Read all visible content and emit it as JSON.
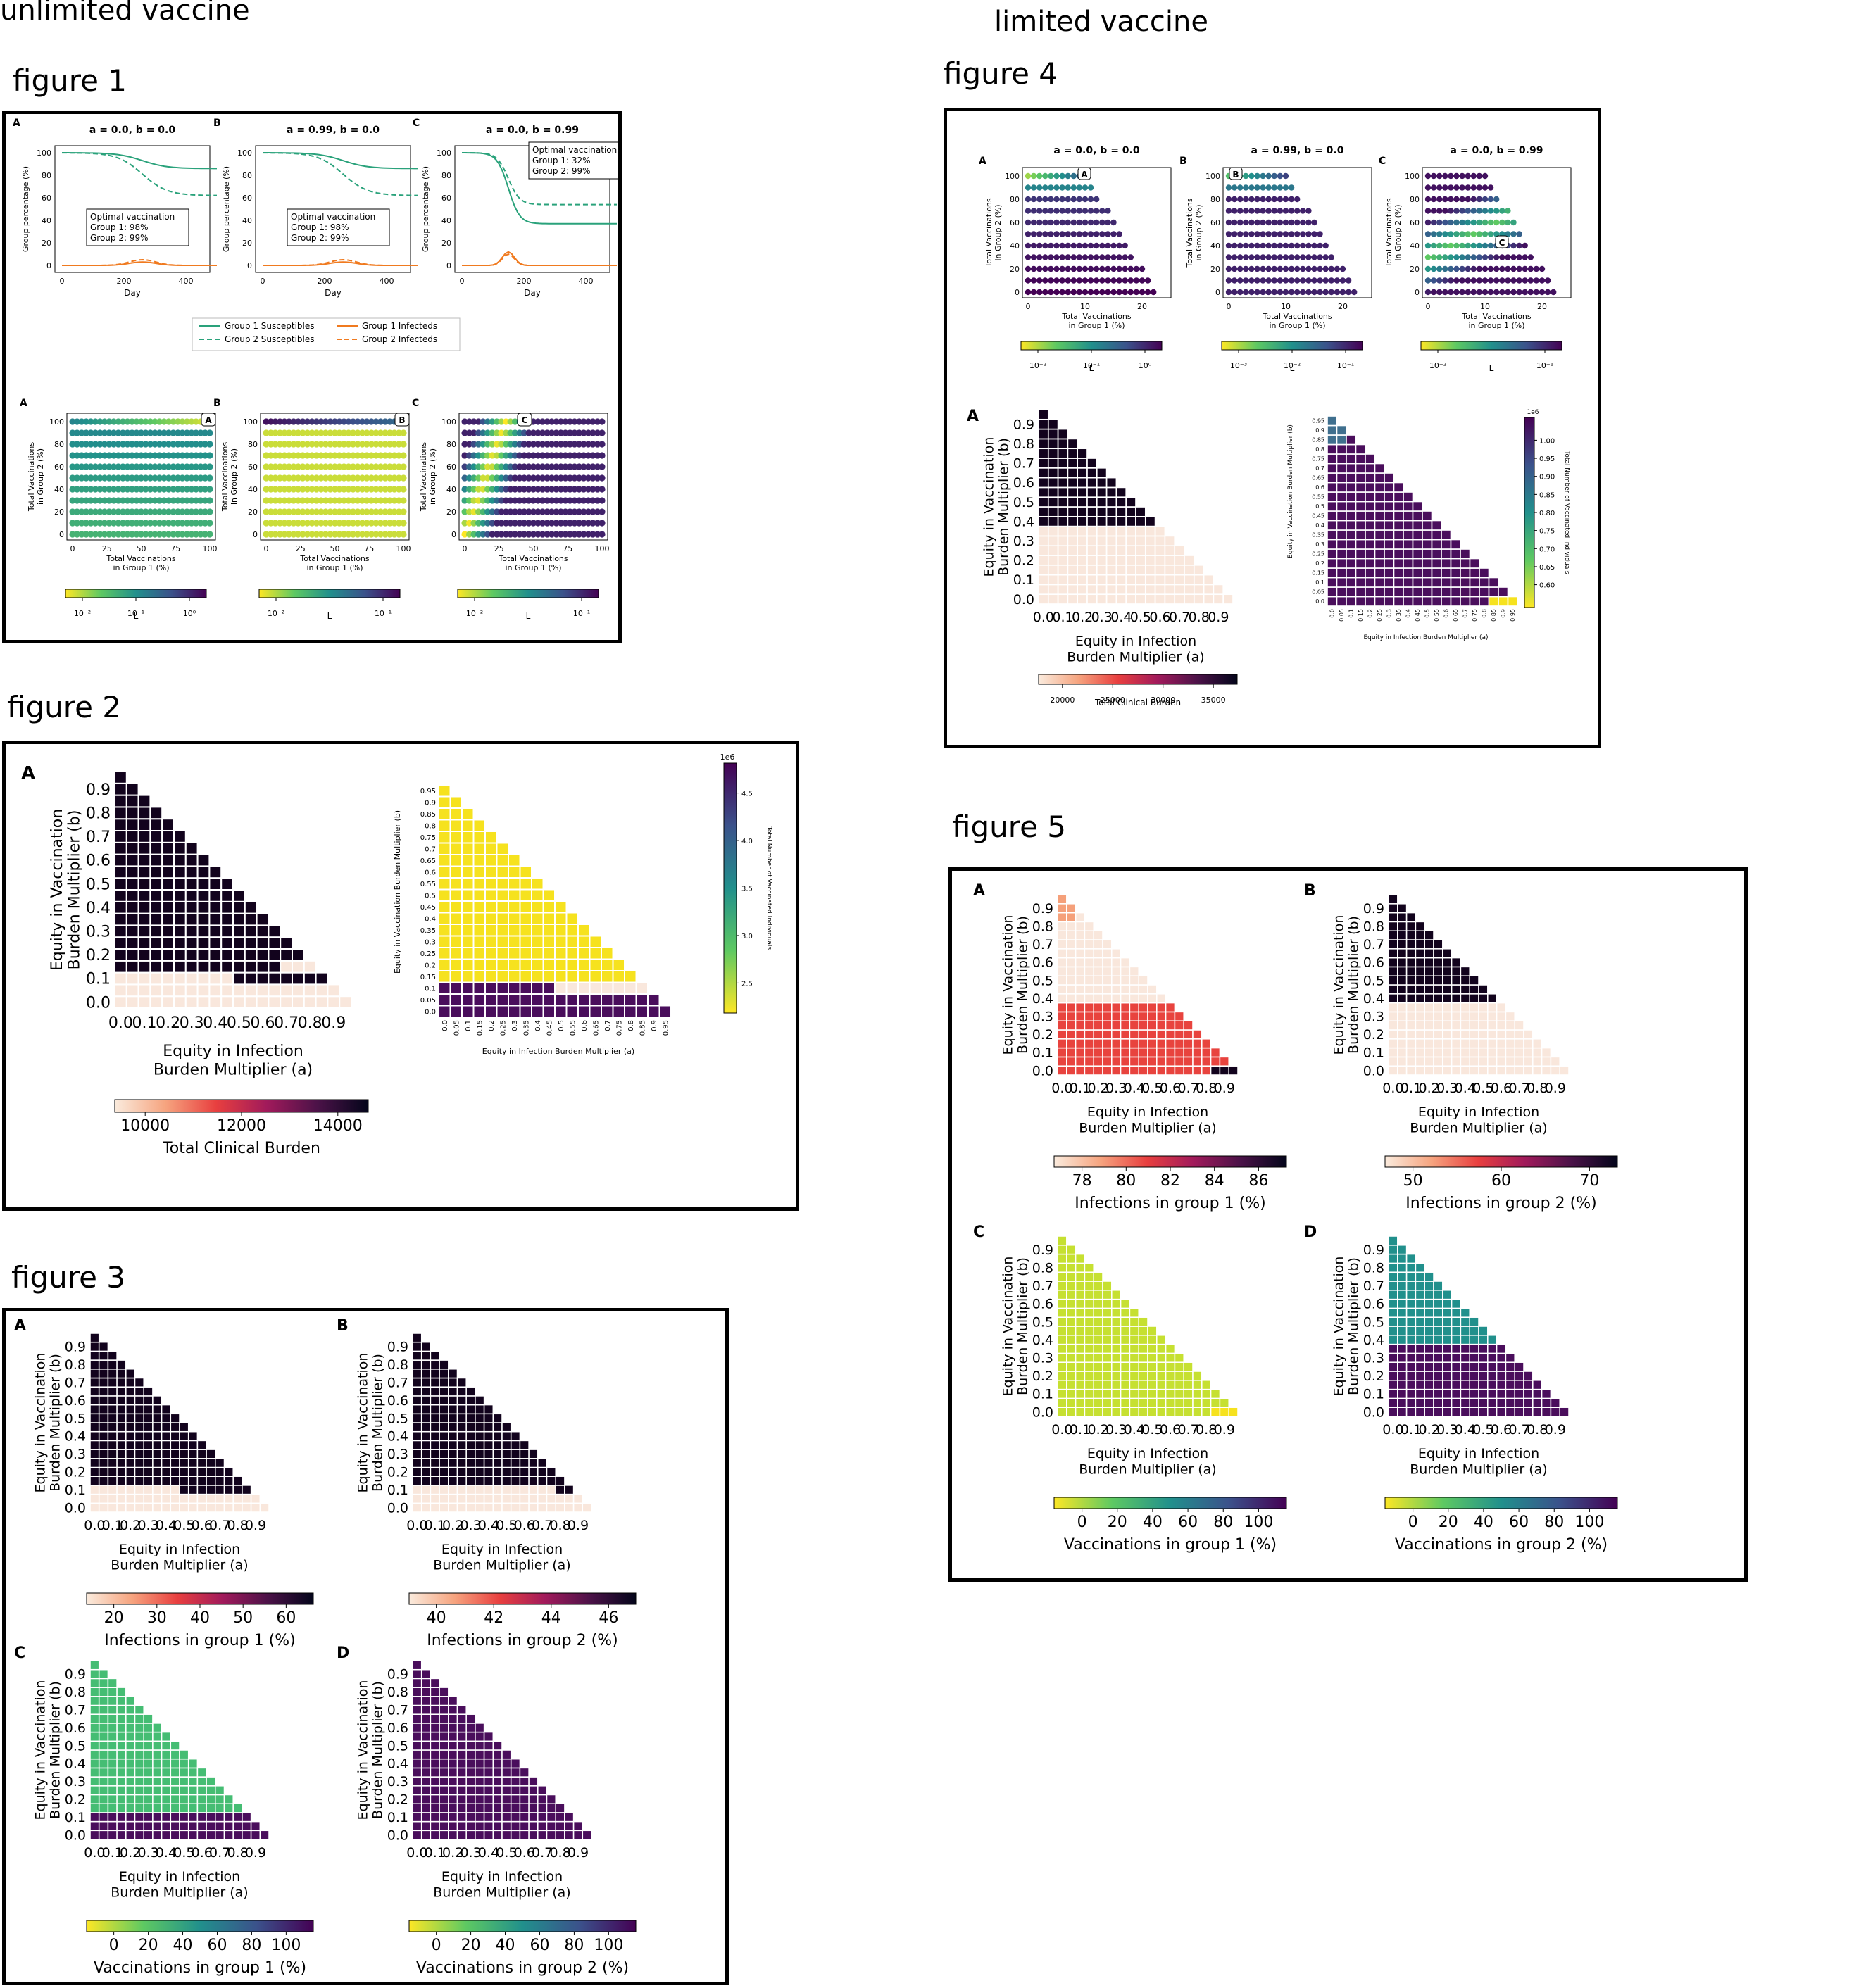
{
  "sections": {
    "unlimited": "unlimited vaccine",
    "limited": "limited vaccine"
  },
  "figure_titles": {
    "f1": "figure 1",
    "f2": "figure 2",
    "f3": "figure 3",
    "f4": "figure 4",
    "f5": "figure 5"
  },
  "labels": {
    "x_infection": [
      "Equity in Infection",
      "Burden Multiplier (a)"
    ],
    "y_vaccination": [
      "Equity in Vaccination",
      "Burden Multiplier (b)"
    ],
    "x_vacc_g1": [
      "Total Vaccinations",
      "in Group 1 (%)"
    ],
    "y_vacc_g2": [
      "Total Vaccinations",
      "in Group 2 (%)"
    ],
    "group_pct": "Group percentage (%)",
    "day": "Day",
    "L": "L",
    "small_y": "Equity in Vaccination Burden Multiplier (b)",
    "small_x": "Equity in Infection Burden Multiplier (a)",
    "small_cb": "Total Number of Vaccinated Individuals"
  },
  "colors": {
    "black": "#12031d",
    "cream": "#f9e7dc",
    "yellow": "#f6e21e",
    "purple": "#4a0e5c",
    "teal": "#21908c",
    "lime": "#c6e031",
    "green": "#45bd73",
    "red": "#e8433e",
    "salmon": "#f5a07a",
    "dark_teal": "#3f6f8e"
  },
  "chart_data": [
    {
      "id": "fig1_lines",
      "type": "line",
      "panels": [
        {
          "letter": "A",
          "title": "a = 0.0, b = 0.0",
          "legend_box": [
            "Optimal vaccination",
            "Group 1: 98%",
            "Group 2: 99%"
          ]
        },
        {
          "letter": "B",
          "title": "a = 0.99, b = 0.0",
          "legend_box": [
            "Optimal vaccination",
            "Group 1: 98%",
            "Group 2: 99%"
          ]
        },
        {
          "letter": "C",
          "title": "a = 0.0, b = 0.99",
          "legend_box": [
            "Optimal vaccination",
            "Group 1: 32%",
            "Group 2: 99%"
          ]
        }
      ],
      "xlim": [
        0,
        500
      ],
      "ylim": [
        0,
        100
      ],
      "x_ticks": [
        "0",
        "200",
        "400"
      ],
      "y_ticks": [
        "0",
        "20",
        "40",
        "60",
        "80",
        "100"
      ],
      "legend": [
        "Group 1 Susceptibles",
        "Group 2 Susceptibles",
        "Group 1 Infecteds",
        "Group 2 Infecteds"
      ],
      "series_end_values": {
        "A": {
          "g1_sus": 86,
          "g2_sus": 62
        },
        "B": {
          "g1_sus": 86,
          "g2_sus": 62
        },
        "C": {
          "g1_sus": 37,
          "g2_sus": 54
        }
      },
      "infected_peaks": {
        "A": [
          3,
          5
        ],
        "B": [
          3,
          5
        ],
        "C": [
          12,
          10
        ]
      }
    },
    {
      "id": "fig1_scatter",
      "type": "scatter",
      "panels": [
        {
          "letter": "A",
          "marker": "A"
        },
        {
          "letter": "B",
          "marker": "B"
        },
        {
          "letter": "C",
          "marker": "C"
        }
      ],
      "x_ticks": [
        "0",
        "25",
        "50",
        "75",
        "100"
      ],
      "y_ticks": [
        "0",
        "20",
        "40",
        "60",
        "80",
        "100"
      ],
      "colorbars": [
        {
          "ticks": [
            "10⁻²",
            "10⁻¹",
            "10⁰"
          ],
          "label": "L"
        },
        {
          "ticks": [
            "10⁻²",
            "10⁻¹"
          ],
          "label": "L"
        },
        {
          "ticks": [
            "10⁻²",
            "10⁻¹"
          ],
          "label": "L"
        }
      ]
    },
    {
      "id": "fig2_heatmap",
      "type": "heatmap",
      "letter": "A",
      "a_ticks": [
        "0.0",
        "0.1",
        "0.2",
        "0.3",
        "0.4",
        "0.5",
        "0.6",
        "0.7",
        "0.8",
        "0.9"
      ],
      "b_ticks": [
        "0.0",
        "0.1",
        "0.2",
        "0.3",
        "0.4",
        "0.5",
        "0.6",
        "0.7",
        "0.8",
        "0.9"
      ],
      "threshold_b": 0.15,
      "colorbar": {
        "ticks": [
          "10000",
          "12000",
          "14000"
        ],
        "label": "Total Clinical Burden"
      },
      "small": {
        "ticks_05": [
          "0.0",
          "0.05",
          "0.1",
          "0.15",
          "0.2",
          "0.25",
          "0.3",
          "0.35",
          "0.4",
          "0.45",
          "0.5",
          "0.55",
          "0.6",
          "0.65",
          "0.7",
          "0.75",
          "0.8",
          "0.85",
          "0.9",
          "0.95"
        ],
        "cb_ticks": [
          "2.5",
          "3.0",
          "3.5",
          "4.0",
          "4.5"
        ],
        "cb_exp": "1e6"
      }
    },
    {
      "id": "fig3_heatmaps",
      "type": "heatmap",
      "panels": [
        {
          "letter": "A",
          "cb_ticks": [
            "20",
            "30",
            "40",
            "50",
            "60"
          ],
          "cb_label": "Infections in group 1 (%)"
        },
        {
          "letter": "B",
          "cb_ticks": [
            "40",
            "42",
            "44",
            "46"
          ],
          "cb_label": "Infections in group 2 (%)"
        },
        {
          "letter": "C",
          "cb_ticks": [
            "0",
            "20",
            "40",
            "60",
            "80",
            "100"
          ],
          "cb_label": "Vaccinations in group 1 (%)"
        },
        {
          "letter": "D",
          "cb_ticks": [
            "0",
            "20",
            "40",
            "60",
            "80",
            "100"
          ],
          "cb_label": "Vaccinations in group 2 (%)"
        }
      ]
    },
    {
      "id": "fig4_scatter",
      "type": "scatter",
      "panels": [
        {
          "letter": "A",
          "title": "a = 0.0, b = 0.0",
          "marker": "A",
          "cb_ticks": [
            "10⁻²",
            "10⁻¹",
            "10⁰"
          ]
        },
        {
          "letter": "B",
          "title": "a = 0.99, b = 0.0",
          "marker": "B",
          "cb_ticks": [
            "10⁻³",
            "10⁻²",
            "10⁻¹"
          ]
        },
        {
          "letter": "C",
          "title": "a = 0.0, b = 0.99",
          "marker": "C",
          "cb_ticks": [
            "10⁻²",
            "10⁻¹"
          ]
        }
      ],
      "x_ticks": [
        "0",
        "10",
        "20"
      ],
      "y_ticks": [
        "0",
        "20",
        "40",
        "60",
        "80",
        "100"
      ]
    },
    {
      "id": "fig4_heatmap",
      "type": "heatmap",
      "letter": "A",
      "threshold_b": 0.4,
      "colorbar": {
        "ticks": [
          "20000",
          "25000",
          "30000",
          "35000"
        ],
        "label": "Total Clinical Burden"
      },
      "small": {
        "cb_ticks": [
          "0.60",
          "0.65",
          "0.70",
          "0.75",
          "0.80",
          "0.85",
          "0.90",
          "0.95",
          "1.00"
        ],
        "cb_exp": "1e6"
      }
    },
    {
      "id": "fig5_heatmaps",
      "type": "heatmap",
      "panels": [
        {
          "letter": "A",
          "cb_ticks": [
            "78",
            "80",
            "82",
            "84",
            "86"
          ],
          "cb_label": "Infections in group 1 (%)"
        },
        {
          "letter": "B",
          "cb_ticks": [
            "50",
            "60",
            "70"
          ],
          "cb_label": "Infections in group 2 (%)"
        },
        {
          "letter": "C",
          "cb_ticks": [
            "0",
            "20",
            "40",
            "60",
            "80",
            "100"
          ],
          "cb_label": "Vaccinations in group 1 (%)"
        },
        {
          "letter": "D",
          "cb_ticks": [
            "0",
            "20",
            "40",
            "60",
            "80",
            "100"
          ],
          "cb_label": "Vaccinations in group 2 (%)"
        }
      ]
    }
  ]
}
